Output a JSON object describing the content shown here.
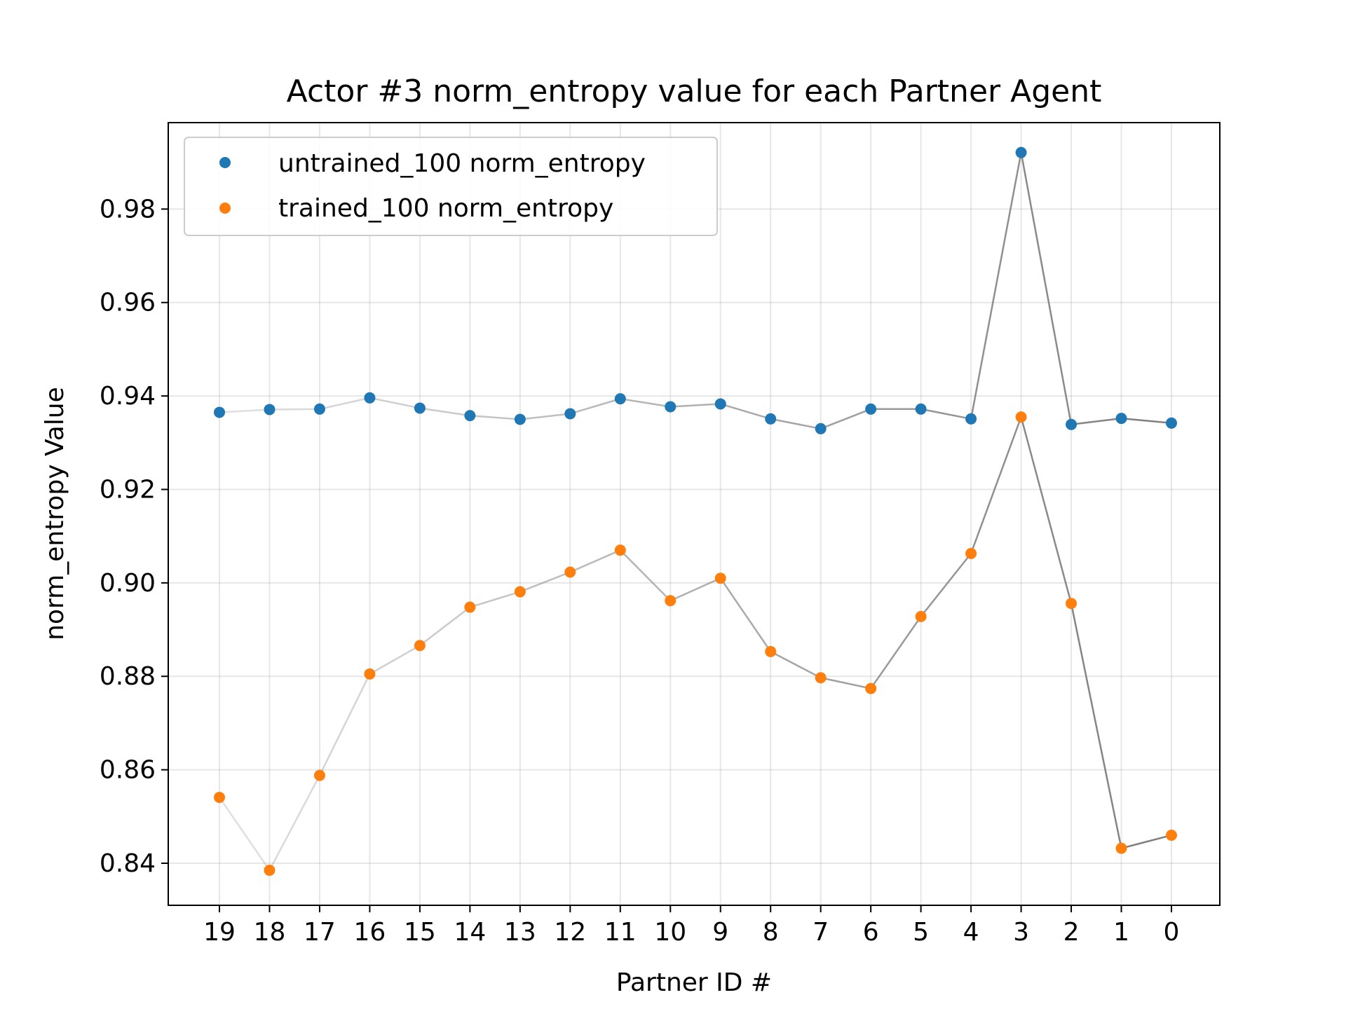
{
  "chart_data": {
    "type": "scatter",
    "title": "Actor #3 norm_entropy value for each Partner Agent",
    "xlabel": "Partner ID #",
    "ylabel": "norm_entropy Value",
    "categories": [
      "19",
      "18",
      "17",
      "16",
      "15",
      "14",
      "13",
      "12",
      "11",
      "10",
      "9",
      "8",
      "7",
      "6",
      "5",
      "4",
      "3",
      "2",
      "1",
      "0"
    ],
    "yticks": [
      "0.84",
      "0.86",
      "0.88",
      "0.90",
      "0.92",
      "0.94",
      "0.96",
      "0.98"
    ],
    "ylim": [
      0.831,
      0.9985
    ],
    "grid": true,
    "legend_position": "upper-left",
    "series": [
      {
        "name": "untrained_100 norm_entropy",
        "color": "#1f77b4",
        "values": [
          0.9365,
          0.9371,
          0.9372,
          0.9396,
          0.9374,
          0.9358,
          0.935,
          0.9362,
          0.9394,
          0.9377,
          0.9383,
          0.9351,
          0.933,
          0.9372,
          0.9372,
          0.9351,
          0.9921,
          0.9339,
          0.9352,
          0.9342
        ]
      },
      {
        "name": "trained_100 norm_entropy",
        "color": "#ff7f0e",
        "values": [
          0.8541,
          0.8385,
          0.8588,
          0.8805,
          0.8866,
          0.8948,
          0.8981,
          0.9023,
          0.907,
          0.8962,
          0.901,
          0.8853,
          0.8797,
          0.8774,
          0.8928,
          0.9063,
          0.9355,
          0.8956,
          0.8432,
          0.846
        ]
      }
    ]
  }
}
